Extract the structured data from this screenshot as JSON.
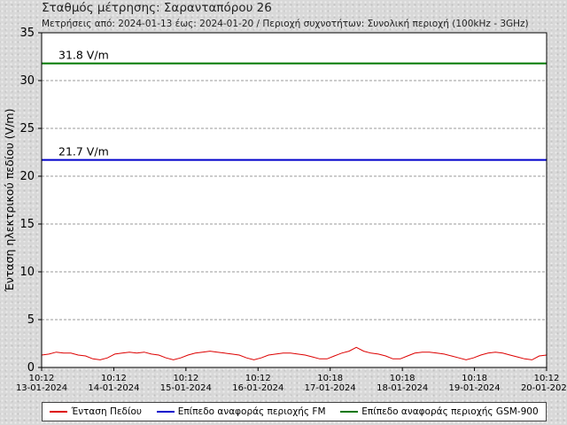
{
  "header": {
    "title": "Σταθμός μέτρησης: Σαρανταπόρου 26",
    "subtitle": "Μετρήσεις από: 2024-01-13 έως: 2024-01-20 / Περιοχή συχνοτήτων: Συνολική περιοχή (100kHz - 3GHz)"
  },
  "chart_data": {
    "type": "line",
    "ylabel": "Ένταση ηλεκτρικού πεδίου (V/m)",
    "xlabel": "",
    "ylim": [
      0,
      35
    ],
    "yticks": [
      0,
      5,
      10,
      15,
      20,
      25,
      30,
      35
    ],
    "grid": true,
    "legend_placement": "bottom",
    "x_ticks": [
      {
        "time": "10:12",
        "date": "13-01-2024"
      },
      {
        "time": "10:12",
        "date": "14-01-2024"
      },
      {
        "time": "10:12",
        "date": "15-01-2024"
      },
      {
        "time": "10:12",
        "date": "16-01-2024"
      },
      {
        "time": "10:18",
        "date": "17-01-2024"
      },
      {
        "time": "10:18",
        "date": "18-01-2024"
      },
      {
        "time": "10:18",
        "date": "19-01-2024"
      },
      {
        "time": "10:12",
        "date": "20-01-2024"
      }
    ],
    "series": [
      {
        "name": "Ένταση Πεδίου",
        "color": "#dd0000",
        "values": [
          1.3,
          1.4,
          1.6,
          1.5,
          1.5,
          1.3,
          1.2,
          0.9,
          0.8,
          1.0,
          1.4,
          1.5,
          1.6,
          1.5,
          1.6,
          1.4,
          1.3,
          1.0,
          0.8,
          1.0,
          1.3,
          1.5,
          1.6,
          1.7,
          1.6,
          1.5,
          1.4,
          1.3,
          1.0,
          0.8,
          1.0,
          1.3,
          1.4,
          1.5,
          1.5,
          1.4,
          1.3,
          1.1,
          0.9,
          0.9,
          1.2,
          1.5,
          1.7,
          2.1,
          1.7,
          1.5,
          1.4,
          1.2,
          0.9,
          0.9,
          1.2,
          1.5,
          1.6,
          1.6,
          1.5,
          1.4,
          1.2,
          1.0,
          0.8,
          1.0,
          1.3,
          1.5,
          1.6,
          1.5,
          1.3,
          1.1,
          0.9,
          0.8,
          1.2,
          1.3
        ]
      },
      {
        "name": "Επίπεδο αναφοράς περιοχής FM",
        "color": "#0000cc",
        "values": [
          21.7,
          21.7
        ],
        "label": "21.7 V/m"
      },
      {
        "name": "Επίπεδο αναφοράς περιοχής GSM-900",
        "color": "#007700",
        "values": [
          31.8,
          31.8
        ],
        "label": "31.8 V/m"
      }
    ]
  }
}
